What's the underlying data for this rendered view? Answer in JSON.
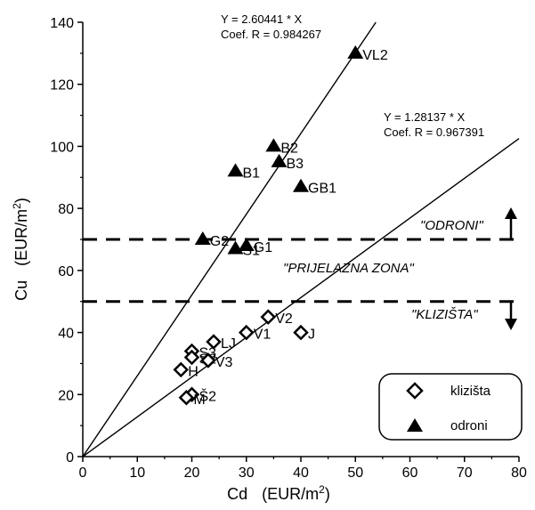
{
  "chart_data": {
    "type": "scatter",
    "xlabel": {
      "main": "Cd",
      "unit": "(EUR/m",
      "sup": "2",
      "close": ")"
    },
    "ylabel": {
      "main": "Cu",
      "unit": "(EUR/m",
      "sup": "2",
      "close": ")"
    },
    "xlim": [
      0,
      80
    ],
    "ylim": [
      0,
      140
    ],
    "x_ticks": [
      0,
      10,
      20,
      30,
      40,
      50,
      60,
      70,
      80
    ],
    "y_ticks": [
      0,
      20,
      40,
      60,
      80,
      100,
      120,
      140
    ],
    "series": [
      {
        "name": "klizišta",
        "marker": "diamond-open",
        "points": [
          {
            "label": "V2",
            "x": 34,
            "y": 45
          },
          {
            "label": "V1",
            "x": 30,
            "y": 40
          },
          {
            "label": "J",
            "x": 40,
            "y": 40
          },
          {
            "label": "LJ",
            "x": 24,
            "y": 37
          },
          {
            "label": "S3",
            "x": 20,
            "y": 34
          },
          {
            "label": "S2",
            "x": 20,
            "y": 32
          },
          {
            "label": "V3",
            "x": 23,
            "y": 31
          },
          {
            "label": "H",
            "x": 18,
            "y": 28
          },
          {
            "label": "Š2",
            "x": 20,
            "y": 20
          },
          {
            "label": "M",
            "x": 19,
            "y": 19
          }
        ]
      },
      {
        "name": "odroni",
        "marker": "triangle-filled",
        "points": [
          {
            "label": "VL2",
            "x": 50,
            "y": 130
          },
          {
            "label": "B2",
            "x": 35,
            "y": 100
          },
          {
            "label": "B3",
            "x": 36,
            "y": 95
          },
          {
            "label": "B1",
            "x": 28,
            "y": 92
          },
          {
            "label": "GB1",
            "x": 40,
            "y": 87
          },
          {
            "label": "G2",
            "x": 22,
            "y": 70
          },
          {
            "label": "G1",
            "x": 30,
            "y": 68
          },
          {
            "label": "Š1",
            "x": 28,
            "y": 67
          }
        ]
      }
    ],
    "regression_lines": [
      {
        "equation": "Y = 2.60441 * X",
        "coef": "Coef. R = 0.984267",
        "slope": 2.60441
      },
      {
        "equation": "Y = 1.28137 * X",
        "coef": "Coef. R = 0.967391",
        "slope": 1.28137
      }
    ],
    "thresholds": [
      70,
      50
    ],
    "zone_labels": {
      "upper": "\"ODRONI\"",
      "middle": "\"PRIJELAZNA ZONA\"",
      "lower": "\"KLIZIŠTA\""
    },
    "grid": false,
    "legend_position": "bottom-right"
  }
}
